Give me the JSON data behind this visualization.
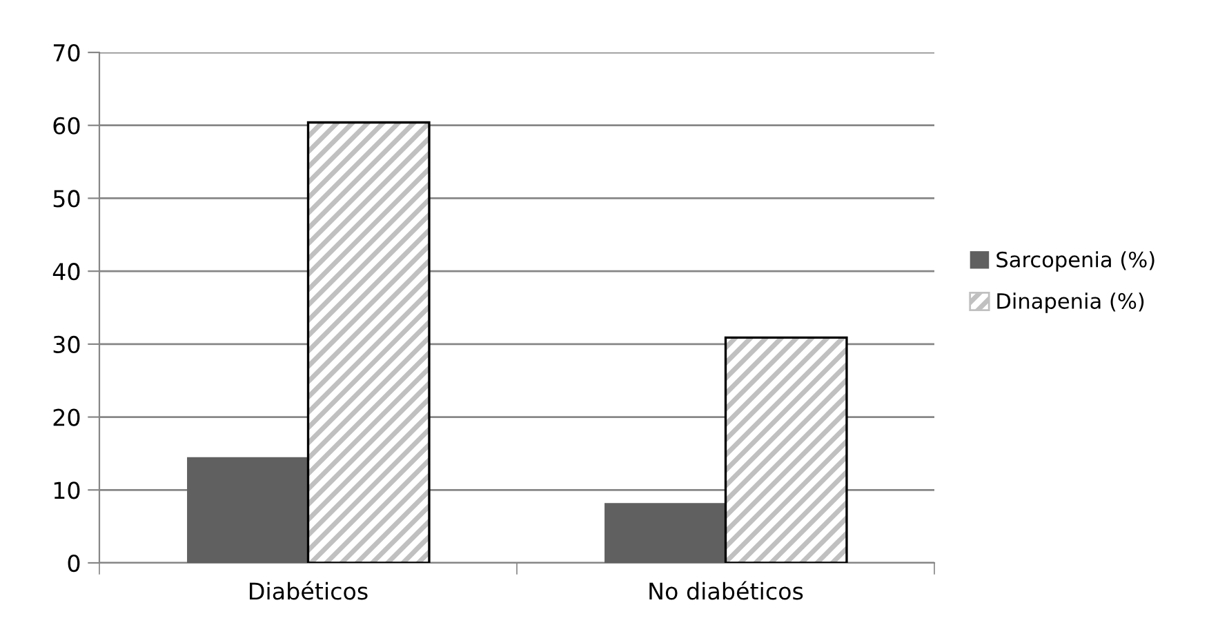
{
  "chart_data": {
    "type": "bar",
    "categories": [
      "Diabéticos",
      "No diabéticos"
    ],
    "series": [
      {
        "name": "Sarcopenia (%)",
        "color": "#606060",
        "values": [
          14.5,
          8.2
        ]
      },
      {
        "name": "Dinapenia (%)",
        "color": "#c0c0c0",
        "values": [
          60.4,
          30.9
        ]
      }
    ],
    "ylim": [
      0,
      70
    ],
    "yticks": [
      0,
      10,
      20,
      30,
      40,
      50,
      60,
      70
    ],
    "grid": "y",
    "legend": "right"
  }
}
